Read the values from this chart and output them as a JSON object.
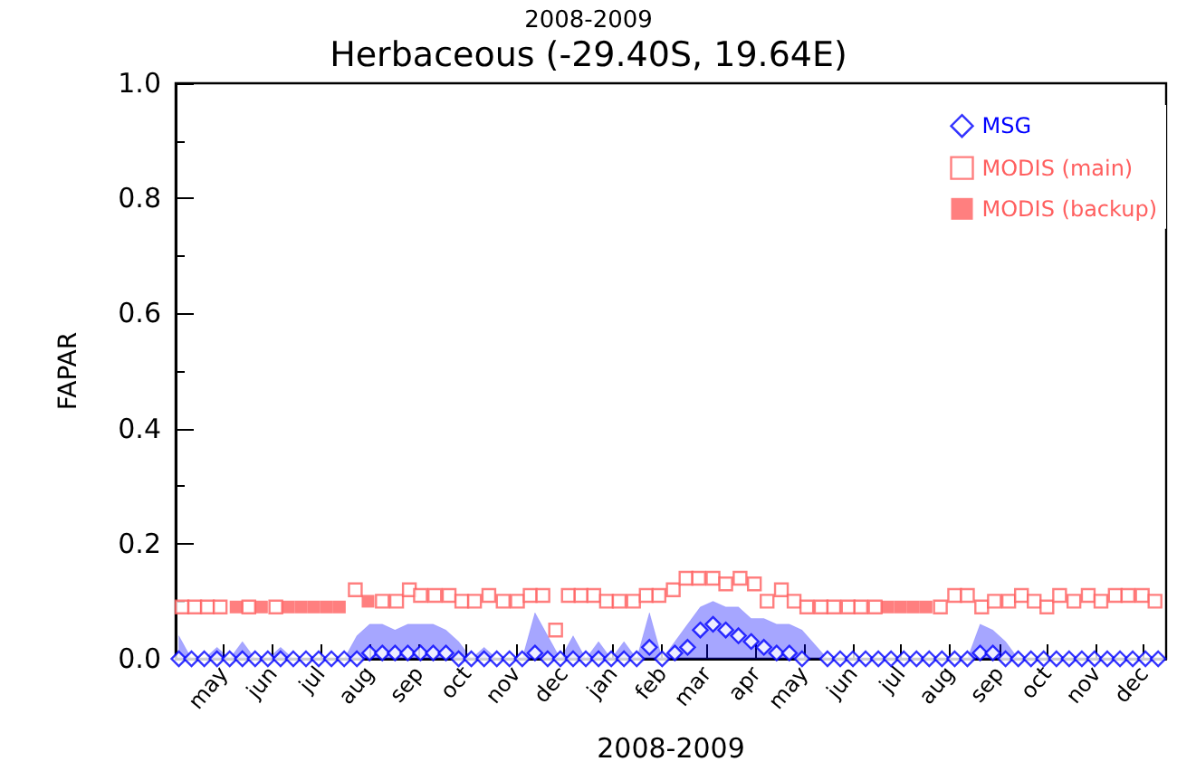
{
  "chart_data": {
    "type": "scatter",
    "subtitle": "2008-2009",
    "title": "Herbaceous (-29.40S, 19.64E)",
    "xlabel": "2008-2009",
    "ylabel": "FAPAR",
    "xlim": [
      "2008-04-01",
      "2009-12-15"
    ],
    "xticks": [
      {
        "value": "2008-05-01",
        "label": "may"
      },
      {
        "value": "2008-06-01",
        "label": "jun"
      },
      {
        "value": "2008-07-01",
        "label": "jul"
      },
      {
        "value": "2008-08-01",
        "label": "aug"
      },
      {
        "value": "2008-09-01",
        "label": "sep"
      },
      {
        "value": "2008-10-01",
        "label": "oct"
      },
      {
        "value": "2008-11-01",
        "label": "nov"
      },
      {
        "value": "2008-12-01",
        "label": "dec"
      },
      {
        "value": "2009-01-01",
        "label": "jan"
      },
      {
        "value": "2009-02-01",
        "label": "feb"
      },
      {
        "value": "2009-03-01",
        "label": "mar"
      },
      {
        "value": "2009-04-01",
        "label": "apr"
      },
      {
        "value": "2009-05-01",
        "label": "may"
      },
      {
        "value": "2009-06-01",
        "label": "jun"
      },
      {
        "value": "2009-07-01",
        "label": "jul"
      },
      {
        "value": "2009-08-01",
        "label": "aug"
      },
      {
        "value": "2009-09-01",
        "label": "sep"
      },
      {
        "value": "2009-10-01",
        "label": "oct"
      },
      {
        "value": "2009-11-01",
        "label": "nov"
      },
      {
        "value": "2009-12-01",
        "label": "dec"
      }
    ],
    "ylim": [
      0,
      1
    ],
    "yticks": [
      {
        "value": 0,
        "label": "0.0"
      },
      0.2,
      0.4,
      0.6,
      0.8,
      {
        "value": 1,
        "label": "1.0"
      }
    ],
    "grid": false,
    "legend": "top right",
    "series": [
      {
        "name": "MSG",
        "color": "#0000ff",
        "marker": "diamond",
        "x": [
          "2008-04-03",
          "2008-04-11",
          "2008-04-19",
          "2008-04-27",
          "2008-05-05",
          "2008-05-13",
          "2008-05-21",
          "2008-05-29",
          "2008-06-06",
          "2008-06-14",
          "2008-06-22",
          "2008-06-30",
          "2008-07-08",
          "2008-07-16",
          "2008-07-24",
          "2008-08-01",
          "2008-08-09",
          "2008-08-17",
          "2008-08-25",
          "2008-09-02",
          "2008-09-10",
          "2008-09-18",
          "2008-09-26",
          "2008-10-04",
          "2008-10-12",
          "2008-10-20",
          "2008-10-28",
          "2008-11-05",
          "2008-11-13",
          "2008-11-21",
          "2008-11-29",
          "2008-12-07",
          "2008-12-15",
          "2008-12-23",
          "2008-12-31",
          "2009-01-08",
          "2009-01-16",
          "2009-01-24",
          "2009-02-01",
          "2009-02-09",
          "2009-02-17",
          "2009-02-25",
          "2009-03-05",
          "2009-03-13",
          "2009-03-21",
          "2009-03-29",
          "2009-04-06",
          "2009-04-14",
          "2009-04-22",
          "2009-04-30",
          "2009-05-16",
          "2009-05-24",
          "2009-06-01",
          "2009-06-09",
          "2009-06-17",
          "2009-06-25",
          "2009-07-03",
          "2009-07-11",
          "2009-07-19",
          "2009-07-27",
          "2009-08-04",
          "2009-08-12",
          "2009-08-20",
          "2009-08-28",
          "2009-09-05",
          "2009-09-13",
          "2009-09-21",
          "2009-09-29",
          "2009-10-07",
          "2009-10-15",
          "2009-10-23",
          "2009-10-31",
          "2009-11-08",
          "2009-11-16",
          "2009-11-24",
          "2009-12-02",
          "2009-12-10"
        ],
        "values": [
          0,
          0,
          0,
          0,
          0,
          0,
          0,
          0,
          0,
          0,
          0,
          0,
          0,
          0,
          0,
          0.01,
          0.01,
          0.01,
          0.01,
          0.01,
          0.01,
          0.01,
          0,
          0,
          0,
          0,
          0,
          0,
          0.01,
          0,
          0,
          0,
          0,
          0,
          0,
          0,
          0,
          0.02,
          0,
          0.01,
          0.02,
          0.05,
          0.06,
          0.05,
          0.04,
          0.03,
          0.02,
          0.01,
          0.01,
          0,
          0,
          0,
          0,
          0,
          0,
          0,
          0,
          0,
          0,
          0,
          0,
          0,
          0.01,
          0.01,
          0,
          0,
          0,
          0,
          0,
          0,
          0,
          0,
          0,
          0,
          0,
          0,
          0
        ],
        "lower": [
          0,
          0,
          0,
          0,
          0,
          0,
          0,
          0,
          0,
          0,
          0,
          0,
          0,
          0,
          0,
          0,
          0,
          0,
          0,
          0,
          0,
          0,
          0,
          0,
          0,
          0,
          0,
          0,
          0,
          0,
          0,
          0,
          0,
          0,
          0,
          0,
          0,
          0,
          0,
          0,
          0,
          0,
          0,
          0,
          0,
          0,
          0,
          0,
          0,
          0,
          0,
          0,
          0,
          0,
          0,
          0,
          0,
          0,
          0,
          0,
          0,
          0,
          0,
          0,
          0,
          0,
          0,
          0,
          0,
          0,
          0,
          0,
          0,
          0,
          0,
          0,
          0
        ],
        "upper": [
          0.04,
          0,
          0,
          0.02,
          0,
          0.03,
          0,
          0,
          0.02,
          0,
          0,
          0,
          0,
          0,
          0.04,
          0.06,
          0.06,
          0.05,
          0.06,
          0.06,
          0.06,
          0.05,
          0.03,
          0,
          0.02,
          0,
          0,
          0,
          0.08,
          0.04,
          0,
          0.04,
          0,
          0.03,
          0,
          0.03,
          0,
          0.08,
          0,
          0.03,
          0.06,
          0.09,
          0.1,
          0.09,
          0.09,
          0.07,
          0.07,
          0.06,
          0.06,
          0.05,
          0,
          0,
          0,
          0,
          0,
          0,
          0,
          0,
          0,
          0,
          0,
          0,
          0.06,
          0.05,
          0.03,
          0,
          0,
          0,
          0,
          0,
          0,
          0,
          0,
          0,
          0,
          0,
          0
        ]
      },
      {
        "name": "MODIS (main)",
        "color": "#ff5f5f",
        "marker": "square",
        "x": [
          "2008-04-05",
          "2008-04-13",
          "2008-04-21",
          "2008-04-29",
          "2008-05-17",
          "2008-06-03",
          "2008-07-23",
          "2008-08-09",
          "2008-08-18",
          "2008-08-26",
          "2008-09-02",
          "2008-09-11",
          "2008-09-20",
          "2008-09-28",
          "2008-10-06",
          "2008-10-15",
          "2008-10-24",
          "2008-11-02",
          "2008-11-10",
          "2008-11-18",
          "2008-11-26",
          "2008-12-04",
          "2008-12-12",
          "2008-12-20",
          "2008-12-28",
          "2009-01-05",
          "2009-01-14",
          "2009-01-22",
          "2009-01-30",
          "2009-02-08",
          "2009-02-16",
          "2009-02-24",
          "2009-03-05",
          "2009-03-13",
          "2009-03-22",
          "2009-03-31",
          "2009-04-08",
          "2009-04-17",
          "2009-04-25",
          "2009-05-03",
          "2009-05-12",
          "2009-05-20",
          "2009-05-29",
          "2009-06-06",
          "2009-06-15",
          "2009-07-26",
          "2009-08-04",
          "2009-08-12",
          "2009-08-21",
          "2009-08-29",
          "2009-09-07",
          "2009-09-15",
          "2009-09-23",
          "2009-10-01",
          "2009-10-09",
          "2009-10-18",
          "2009-10-27",
          "2009-11-04",
          "2009-11-13",
          "2009-11-21",
          "2009-11-30",
          "2009-12-08"
        ],
        "values": [
          0.09,
          0.09,
          0.09,
          0.09,
          0.09,
          0.09,
          0.12,
          0.1,
          0.1,
          0.12,
          0.11,
          0.11,
          0.11,
          0.1,
          0.1,
          0.11,
          0.1,
          0.1,
          0.11,
          0.11,
          0.05,
          0.11,
          0.11,
          0.11,
          0.1,
          0.1,
          0.1,
          0.11,
          0.11,
          0.12,
          0.14,
          0.14,
          0.14,
          0.13,
          0.14,
          0.13,
          0.1,
          0.12,
          0.1,
          0.09,
          0.09,
          0.09,
          0.09,
          0.09,
          0.09,
          0.09,
          0.11,
          0.11,
          0.09,
          0.1,
          0.1,
          0.11,
          0.1,
          0.09,
          0.11,
          0.1,
          0.11,
          0.1,
          0.11,
          0.11,
          0.11,
          0.1
        ]
      },
      {
        "name": "MODIS (backup)",
        "color": "#ff5f5f",
        "marker": "square",
        "x": [
          "2008-05-09",
          "2008-05-25",
          "2008-06-11",
          "2008-06-19",
          "2008-06-27",
          "2008-07-05",
          "2008-07-13",
          "2008-07-31",
          "2009-06-23",
          "2009-07-01",
          "2009-07-09",
          "2009-07-17"
        ],
        "values": [
          0.09,
          0.09,
          0.09,
          0.09,
          0.09,
          0.09,
          0.09,
          0.1,
          0.09,
          0.09,
          0.09,
          0.09
        ]
      }
    ]
  }
}
